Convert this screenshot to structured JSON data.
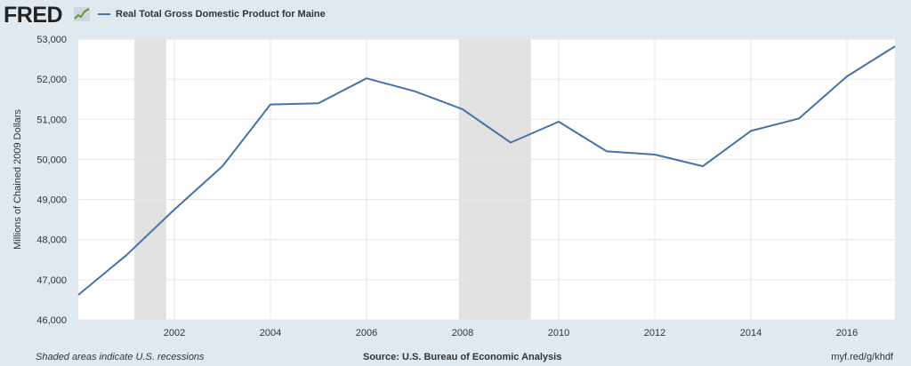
{
  "header": {
    "logo": "FRED",
    "legend_label": "Real Total Gross Domestic Product for Maine",
    "series_color": "#4572a7"
  },
  "chart_data": {
    "type": "line",
    "title": "Real Total Gross Domestic Product for Maine",
    "ylabel": "Millions of Chained 2009 Dollars",
    "xlabel": "",
    "ylim": [
      46000,
      53000
    ],
    "xlim": [
      2000,
      2017
    ],
    "yticks": [
      46000,
      47000,
      48000,
      49000,
      50000,
      51000,
      52000,
      53000
    ],
    "ytick_labels": [
      "46,000",
      "47,000",
      "48,000",
      "49,000",
      "50,000",
      "51,000",
      "52,000",
      "53,000"
    ],
    "xticks": [
      2002,
      2004,
      2006,
      2008,
      2010,
      2012,
      2014,
      2016
    ],
    "xtick_labels": [
      "2002",
      "2004",
      "2006",
      "2008",
      "2010",
      "2012",
      "2014",
      "2016"
    ],
    "grid": true,
    "recessions": [
      [
        2001.17,
        2001.83
      ],
      [
        2007.92,
        2009.42
      ]
    ],
    "series": [
      {
        "name": "Real Total Gross Domestic Product for Maine",
        "color": "#4572a7",
        "x": [
          2000,
          2001,
          2002,
          2003,
          2004,
          2005,
          2006,
          2007,
          2008,
          2009,
          2010,
          2011,
          2012,
          2013,
          2014,
          2015,
          2016,
          2017
        ],
        "values": [
          46620,
          47610,
          48750,
          49830,
          51370,
          51400,
          52020,
          51700,
          51250,
          50420,
          50940,
          50200,
          50120,
          49830,
          50710,
          51020,
          52070,
          52820
        ]
      }
    ]
  },
  "footer": {
    "note": "Shaded areas indicate U.S. recessions",
    "source": "Source: U.S. Bureau of Economic Analysis",
    "link": "myf.red/g/khdf"
  }
}
